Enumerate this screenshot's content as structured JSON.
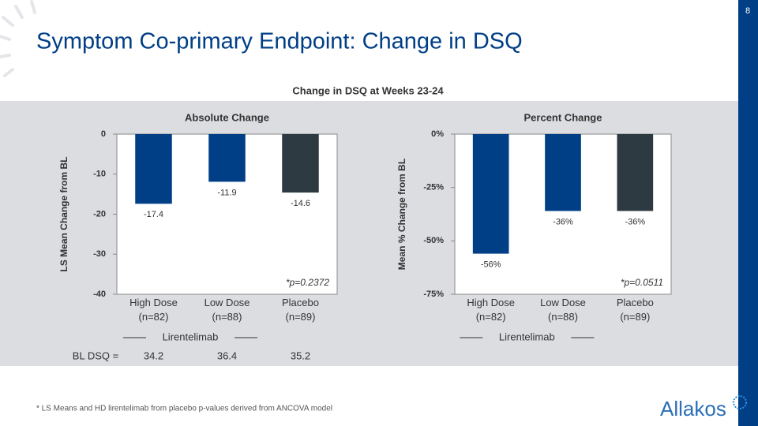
{
  "page_number": "8",
  "title": "Symptom Co-primary Endpoint: Change in DSQ",
  "section_title": "Change in DSQ at Weeks 23-24",
  "footnote": "* LS Means and HD lirentelimab from placebo p-values derived from ANCOVA model",
  "logo": "Allakos",
  "chart_data": [
    {
      "type": "bar",
      "title": "Absolute Change",
      "y_label": "LS Mean Change from BL",
      "categories": [
        "High Dose\n(n=82)",
        "Low Dose\n(n=88)",
        "Placebo\n(n=89)"
      ],
      "values": [
        -17.4,
        -11.9,
        -14.6
      ],
      "colors": [
        "#003e86",
        "#003e86",
        "#2e3a41"
      ],
      "ylim": [
        -40,
        0
      ],
      "yticks": [
        0,
        -10,
        -20,
        -30,
        -40
      ],
      "annotation": "*p=0.2372",
      "group_label": "Lirentelimab",
      "baseline_label": "BL DSQ =",
      "baseline_values": [
        34.2,
        36.4,
        35.2
      ]
    },
    {
      "type": "bar",
      "title": "Percent Change",
      "y_label": "Mean % Change from BL",
      "categories": [
        "High Dose\n(n=82)",
        "Low Dose\n(n=88)",
        "Placebo\n(n=89)"
      ],
      "values": [
        -56,
        -36,
        -36
      ],
      "value_labels": [
        "-56%",
        "-36%",
        "-36%"
      ],
      "colors": [
        "#003e86",
        "#003e86",
        "#2e3a41"
      ],
      "ylim": [
        -75,
        0
      ],
      "yticks": [
        {
          "value": 0,
          "label": "0%"
        },
        {
          "value": -25,
          "label": "-25%"
        },
        {
          "value": -50,
          "label": "-50%"
        },
        {
          "value": -75,
          "label": "-75%"
        }
      ],
      "annotation": "*p=0.0511",
      "group_label": "Lirentelimab"
    }
  ]
}
